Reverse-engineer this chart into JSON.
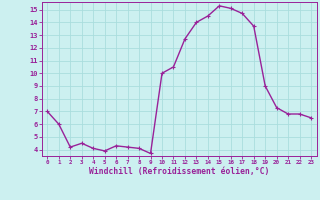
{
  "x": [
    0,
    1,
    2,
    3,
    4,
    5,
    6,
    7,
    8,
    9,
    10,
    11,
    12,
    13,
    14,
    15,
    16,
    17,
    18,
    19,
    20,
    21,
    22,
    23
  ],
  "y": [
    7.0,
    6.0,
    4.2,
    4.5,
    4.1,
    3.9,
    4.3,
    4.2,
    4.1,
    3.7,
    10.0,
    10.5,
    12.7,
    14.0,
    14.5,
    15.3,
    15.1,
    14.7,
    13.7,
    9.0,
    7.3,
    6.8,
    6.8,
    6.5
  ],
  "line_color": "#992299",
  "marker_color": "#992299",
  "bg_color": "#ccf0f0",
  "grid_color": "#aadddd",
  "axis_label_color": "#992299",
  "tick_color": "#992299",
  "xlabel": "Windchill (Refroidissement éolien,°C)",
  "ylim_min": 3.5,
  "ylim_max": 15.6,
  "yticks": [
    4,
    5,
    6,
    7,
    8,
    9,
    10,
    11,
    12,
    13,
    14,
    15
  ],
  "xticks": [
    0,
    1,
    2,
    3,
    4,
    5,
    6,
    7,
    8,
    9,
    10,
    11,
    12,
    13,
    14,
    15,
    16,
    17,
    18,
    19,
    20,
    21,
    22,
    23
  ],
  "line_width": 1.0,
  "marker_size": 2.5
}
